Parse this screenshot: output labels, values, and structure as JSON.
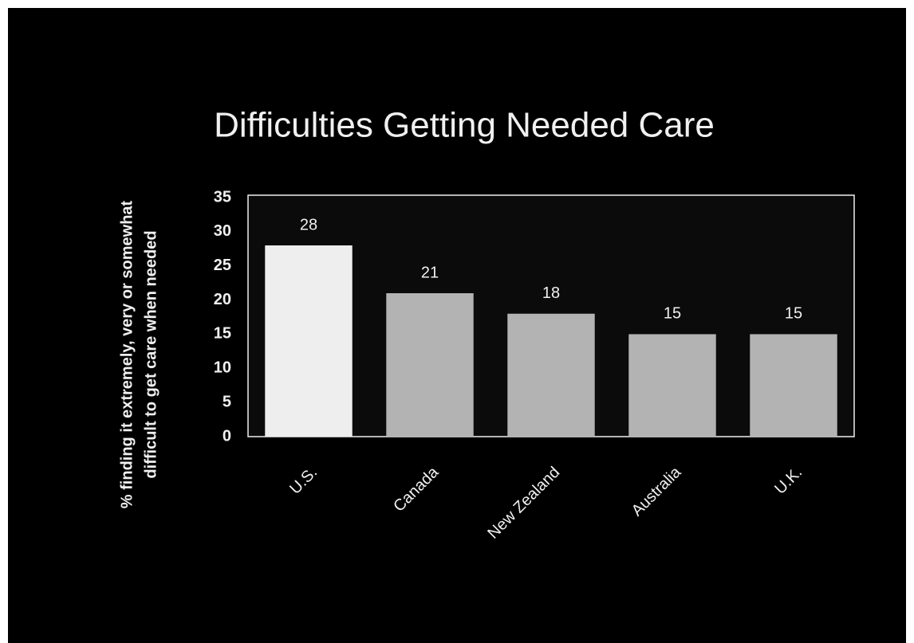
{
  "chart_data": {
    "type": "bar",
    "title": "Difficulties Getting Needed Care",
    "y_label": [
      "% finding it extremely, very or somewhat",
      "difficult to get care when needed"
    ],
    "categories": [
      "U.S.",
      "Canada",
      "New Zealand",
      "Australia",
      "U.K."
    ],
    "values": [
      28,
      21,
      18,
      15,
      15
    ],
    "colors": [
      "#eeeeee",
      "#b3b3b3",
      "#b3b3b3",
      "#b3b3b3",
      "#b3b3b3"
    ],
    "ylim": [
      0,
      35
    ],
    "yticks": [
      0,
      5,
      10,
      15,
      20,
      25,
      30,
      35
    ],
    "grid": false
  }
}
